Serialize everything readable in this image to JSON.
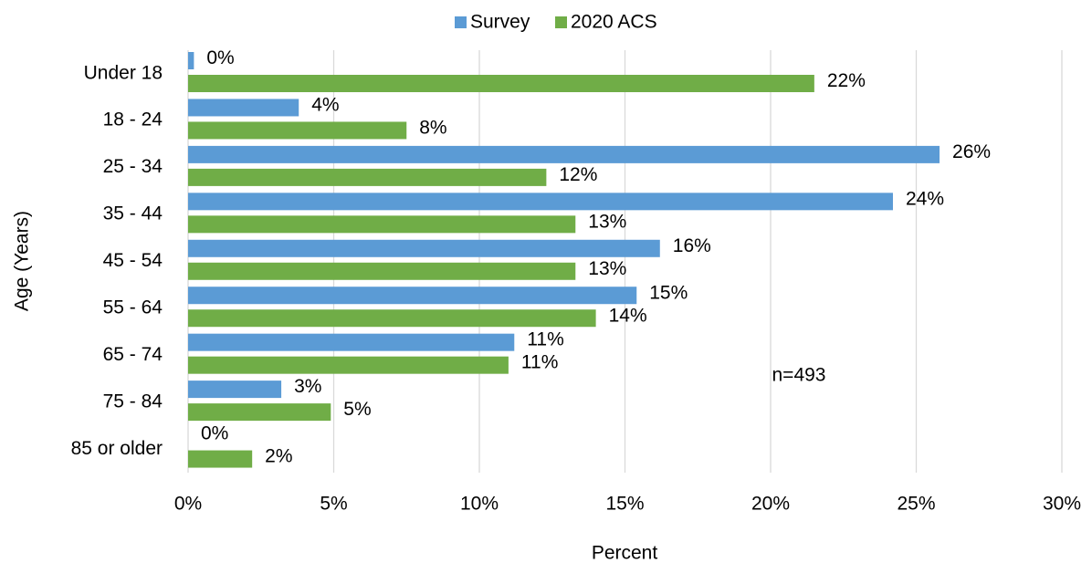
{
  "chart_data": {
    "type": "bar",
    "orientation": "horizontal",
    "categories": [
      "Under 18",
      "18 - 24",
      "25 - 34",
      "35 - 44",
      "45 - 54",
      "55 - 64",
      "65 - 74",
      "75 - 84",
      "85 or older"
    ],
    "series": [
      {
        "name": "Survey",
        "color": "#5b9bd5",
        "values": [
          0.2,
          3.8,
          25.8,
          24.2,
          16.2,
          15.4,
          11.2,
          3.2,
          0
        ],
        "value_labels": [
          "0%",
          "4%",
          "26%",
          "24%",
          "16%",
          "15%",
          "11%",
          "3%",
          "0%"
        ]
      },
      {
        "name": "2020 ACS",
        "color": "#70ad47",
        "values": [
          21.5,
          7.5,
          12.3,
          13.3,
          13.3,
          14.0,
          11.0,
          4.9,
          2.2
        ],
        "value_labels": [
          "22%",
          "8%",
          "12%",
          "13%",
          "13%",
          "14%",
          "11%",
          "5%",
          "2%"
        ]
      }
    ],
    "xlim": [
      0,
      30
    ],
    "xticks": [
      {
        "value": 0,
        "label": "0%"
      },
      {
        "value": 5,
        "label": "5%"
      },
      {
        "value": 10,
        "label": "10%"
      },
      {
        "value": 15,
        "label": "15%"
      },
      {
        "value": 20,
        "label": "20%"
      },
      {
        "value": 25,
        "label": "25%"
      },
      {
        "value": 30,
        "label": "30%"
      }
    ],
    "xlabel": "Percent",
    "ylabel": "Age (Years)",
    "annotation": "n=493",
    "grid": true,
    "legend": "top"
  }
}
